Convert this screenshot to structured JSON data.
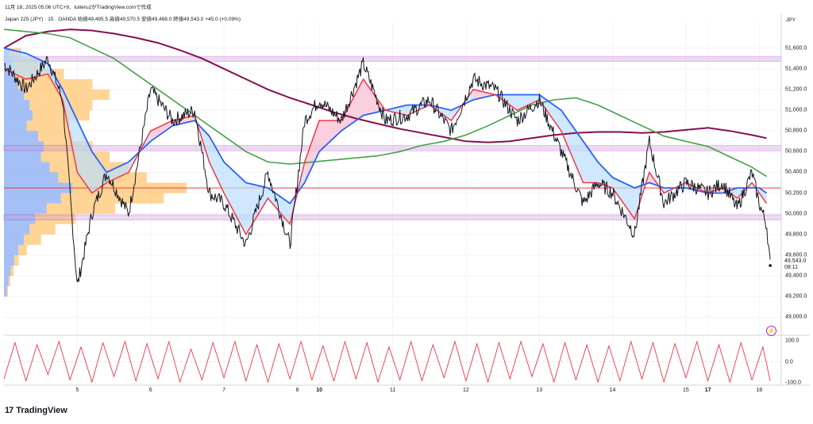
{
  "header": {
    "timestamp": "11月 18, 2025 05:06 UTC+9、tuiteru2がTradingView.comで作成",
    "instrument_line": "Japan 225 (JPY) · 15 · OANDA  始値49,495.5  高値49,570.5  安値49,468.0  終値49,543.0  +45.0 (+0.09%)"
  },
  "currency": "JPY",
  "last_price_label": "49,543.0",
  "countdown": "08:11",
  "logo_text": "TradingView",
  "logo_mark": "17",
  "colors": {
    "candle": "#131722",
    "ema_fast": "#f23645",
    "ema_slow": "#2962ff",
    "sma_green": "#43a047",
    "sma_maroon": "#880e4f",
    "zone_purple": "#ce93d8",
    "hline_red": "#f23645",
    "vp_up": "#ffb74d",
    "vp_down": "#5b8def",
    "osc": "#f23645"
  },
  "chart_data": {
    "type": "line",
    "title": "",
    "xlabel": "",
    "ylabel": "",
    "ylim": [
      48850,
      51850
    ],
    "y_ticks": [
      "51,600.0",
      "51,400.0",
      "51,200.0",
      "51,000.0",
      "50,800.0",
      "50,600.0",
      "50,400.0",
      "50,200.0",
      "50,000.0",
      "49,800.0",
      "49,600.0",
      "49,400.0",
      "49,200.0",
      "49,000.0"
    ],
    "x_ticks": [
      {
        "label": "5",
        "x": 5.3,
        "bold": false
      },
      {
        "label": "6",
        "x": 6.3,
        "bold": false
      },
      {
        "label": "7",
        "x": 7.3,
        "bold": false
      },
      {
        "label": "8",
        "x": 8.3,
        "bold": false
      },
      {
        "label": "10",
        "x": 8.6,
        "bold": true
      },
      {
        "label": "11",
        "x": 9.6,
        "bold": false
      },
      {
        "label": "12",
        "x": 10.6,
        "bold": false
      },
      {
        "label": "13",
        "x": 11.6,
        "bold": false
      },
      {
        "label": "14",
        "x": 12.6,
        "bold": false
      },
      {
        "label": "15",
        "x": 13.6,
        "bold": false
      },
      {
        "label": "17",
        "x": 13.9,
        "bold": true
      },
      {
        "label": "18",
        "x": 14.6,
        "bold": false
      }
    ],
    "xlim": [
      4.3,
      14.9
    ],
    "zones": [
      {
        "low": 51470,
        "high": 51520
      },
      {
        "low": 50610,
        "high": 50660
      },
      {
        "low": 49940,
        "high": 49990
      }
    ],
    "hline": 50250,
    "series": [
      {
        "key": "price",
        "x": [
          4.3,
          4.6,
          4.9,
          5.1,
          5.3,
          5.5,
          5.7,
          6.0,
          6.3,
          6.6,
          6.9,
          7.1,
          7.3,
          7.6,
          7.9,
          8.2,
          8.4,
          8.6,
          8.9,
          9.2,
          9.5,
          9.8,
          10.1,
          10.4,
          10.7,
          11.0,
          11.3,
          11.6,
          11.9,
          12.2,
          12.4,
          12.6,
          12.9,
          13.1,
          13.3,
          13.6,
          13.9,
          14.1,
          14.3,
          14.5,
          14.6,
          14.7,
          14.75
        ],
        "values": [
          51450,
          51200,
          51500,
          51100,
          49300,
          50000,
          50400,
          50000,
          51200,
          50900,
          51000,
          50200,
          50100,
          49700,
          50400,
          49700,
          50900,
          51100,
          50900,
          51450,
          50900,
          50950,
          51100,
          50800,
          51300,
          51200,
          50900,
          51100,
          50600,
          50100,
          50300,
          50200,
          49800,
          50700,
          50100,
          50300,
          50200,
          50300,
          50050,
          50400,
          50100,
          49900,
          49500
        ]
      },
      {
        "key": "ema_fast",
        "x": [
          4.3,
          4.6,
          4.9,
          5.1,
          5.3,
          5.5,
          5.7,
          6.0,
          6.3,
          6.6,
          6.9,
          7.1,
          7.3,
          7.6,
          7.9,
          8.2,
          8.4,
          8.6,
          8.9,
          9.2,
          9.5,
          9.8,
          10.1,
          10.4,
          10.7,
          11.0,
          11.3,
          11.6,
          11.9,
          12.2,
          12.4,
          12.6,
          12.9,
          13.1,
          13.3,
          13.6,
          13.9,
          14.1,
          14.3,
          14.5,
          14.6,
          14.7
        ],
        "values": [
          51400,
          51300,
          51350,
          51100,
          50400,
          50200,
          50300,
          50400,
          50800,
          50900,
          50950,
          50500,
          50200,
          49800,
          50150,
          49900,
          50500,
          50900,
          50900,
          51300,
          51000,
          50950,
          51050,
          50900,
          51200,
          51150,
          51000,
          51100,
          50800,
          50300,
          50300,
          50250,
          49950,
          50400,
          50200,
          50300,
          50200,
          50250,
          50150,
          50300,
          50200,
          50100
        ]
      },
      {
        "key": "ema_slow",
        "x": [
          4.3,
          4.6,
          4.9,
          5.1,
          5.3,
          5.5,
          5.7,
          6.0,
          6.3,
          6.6,
          6.9,
          7.1,
          7.3,
          7.6,
          7.9,
          8.2,
          8.4,
          8.6,
          8.9,
          9.2,
          9.5,
          9.8,
          10.1,
          10.4,
          10.7,
          11.0,
          11.3,
          11.6,
          11.9,
          12.2,
          12.4,
          12.6,
          12.9,
          13.1,
          13.3,
          13.6,
          13.9,
          14.1,
          14.3,
          14.5,
          14.6,
          14.7
        ],
        "values": [
          51600,
          51550,
          51450,
          51200,
          50900,
          50600,
          50400,
          50500,
          50700,
          50850,
          50900,
          50750,
          50500,
          50300,
          50250,
          50100,
          50300,
          50600,
          50800,
          50950,
          51000,
          51050,
          51050,
          51000,
          51100,
          51150,
          51150,
          51150,
          51000,
          50700,
          50500,
          50350,
          50250,
          50300,
          50250,
          50250,
          50200,
          50200,
          50250,
          50250,
          50250,
          50200
        ]
      },
      {
        "key": "sma_green",
        "x": [
          4.3,
          4.6,
          4.9,
          5.2,
          5.5,
          5.8,
          6.1,
          6.4,
          6.7,
          7.0,
          7.3,
          7.6,
          7.9,
          8.2,
          8.5,
          8.8,
          9.1,
          9.4,
          9.7,
          10.0,
          10.3,
          10.6,
          10.9,
          11.2,
          11.5,
          11.8,
          12.1,
          12.4,
          12.7,
          13.0,
          13.3,
          13.6,
          13.9,
          14.2,
          14.5,
          14.7
        ],
        "values": [
          51780,
          51760,
          51740,
          51700,
          51600,
          51500,
          51350,
          51200,
          51050,
          50900,
          50750,
          50600,
          50500,
          50480,
          50500,
          50520,
          50540,
          50560,
          50600,
          50660,
          50700,
          50760,
          50850,
          50950,
          51050,
          51100,
          51120,
          51050,
          50950,
          50850,
          50750,
          50700,
          50650,
          50550,
          50450,
          50360
        ]
      },
      {
        "key": "sma_maroon",
        "x": [
          4.3,
          4.6,
          4.9,
          5.2,
          5.5,
          5.8,
          6.1,
          6.4,
          6.7,
          7.0,
          7.3,
          7.6,
          7.9,
          8.2,
          8.5,
          8.8,
          9.1,
          9.4,
          9.7,
          10.0,
          10.3,
          10.6,
          10.9,
          11.2,
          11.5,
          11.8,
          12.1,
          12.4,
          12.7,
          13.0,
          13.3,
          13.6,
          13.9,
          14.2,
          14.5,
          14.7
        ],
        "values": [
          51600,
          51720,
          51760,
          51780,
          51770,
          51740,
          51700,
          51650,
          51580,
          51500,
          51400,
          51300,
          51200,
          51120,
          51050,
          50980,
          50920,
          50870,
          50820,
          50780,
          50740,
          50700,
          50690,
          50700,
          50730,
          50760,
          50780,
          50790,
          50790,
          50780,
          50790,
          50810,
          50830,
          50800,
          50760,
          50730
        ]
      }
    ],
    "volume_profile": {
      "price_bins": [
        51550,
        51450,
        51350,
        51250,
        51150,
        51050,
        50950,
        50850,
        50750,
        50650,
        50550,
        50450,
        50350,
        50250,
        50150,
        50050,
        49950,
        49850,
        49750,
        49650,
        49550,
        49450,
        49350,
        49250
      ],
      "down": [
        10,
        15,
        20,
        25,
        35,
        45,
        50,
        40,
        60,
        70,
        65,
        80,
        95,
        120,
        100,
        75,
        55,
        45,
        35,
        25,
        18,
        12,
        8,
        5
      ],
      "up": [
        20,
        45,
        85,
        130,
        150,
        110,
        100,
        75,
        60,
        85,
        120,
        140,
        155,
        200,
        180,
        120,
        70,
        45,
        30,
        15,
        8,
        5,
        3,
        2
      ]
    },
    "oscillator": {
      "ylim": [
        -110,
        110
      ],
      "ticks": [
        "100.0",
        "0.0",
        "-100.0"
      ],
      "x": [
        4.3,
        4.45,
        4.6,
        4.75,
        4.9,
        5.05,
        5.2,
        5.35,
        5.5,
        5.65,
        5.8,
        5.95,
        6.1,
        6.25,
        6.4,
        6.55,
        6.7,
        6.85,
        7.0,
        7.15,
        7.3,
        7.45,
        7.6,
        7.75,
        7.9,
        8.05,
        8.2,
        8.35,
        8.5,
        8.65,
        8.8,
        8.95,
        9.1,
        9.25,
        9.4,
        9.55,
        9.7,
        9.85,
        10.0,
        10.15,
        10.3,
        10.45,
        10.6,
        10.75,
        10.9,
        11.05,
        11.2,
        11.35,
        11.5,
        11.65,
        11.8,
        11.95,
        12.1,
        12.25,
        12.4,
        12.55,
        12.7,
        12.85,
        13.0,
        13.15,
        13.3,
        13.45,
        13.6,
        13.75,
        13.9,
        14.05,
        14.2,
        14.35,
        14.5,
        14.65,
        14.75
      ],
      "values": [
        -80,
        90,
        -90,
        80,
        -60,
        95,
        -85,
        70,
        -95,
        90,
        -70,
        95,
        -90,
        85,
        -80,
        95,
        -95,
        60,
        -85,
        90,
        -75,
        95,
        -90,
        80,
        -95,
        85,
        -80,
        95,
        -85,
        75,
        -90,
        95,
        -80,
        90,
        -95,
        70,
        -85,
        95,
        -90,
        80,
        -75,
        95,
        -90,
        85,
        -95,
        90,
        -80,
        95,
        -70,
        85,
        -95,
        90,
        -85,
        80,
        -95,
        75,
        -90,
        95,
        -80,
        90,
        -95,
        85,
        -75,
        95,
        -90,
        80,
        -95,
        90,
        -85,
        70,
        -90
      ]
    }
  }
}
